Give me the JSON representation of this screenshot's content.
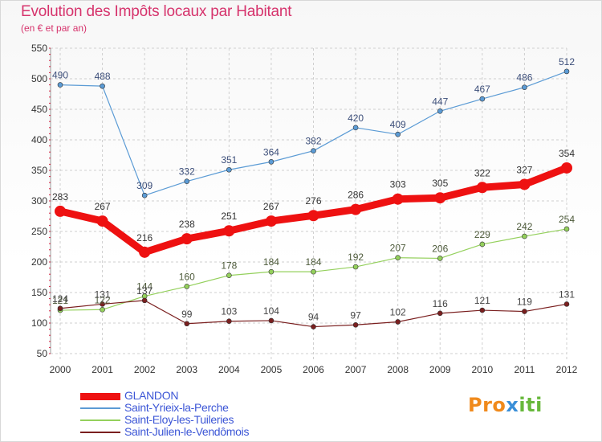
{
  "title": "Evolution des Impôts locaux par Habitant",
  "subtitle": "(en € et par an)",
  "logo": {
    "part1": "Pro",
    "part2": "x",
    "part3": "iti"
  },
  "chart_data": {
    "type": "line",
    "x": [
      "2000",
      "2001",
      "2002",
      "2003",
      "2004",
      "2005",
      "2006",
      "2007",
      "2008",
      "2009",
      "2010",
      "2011",
      "2012"
    ],
    "ylim": [
      50,
      550
    ],
    "yticks": [
      50,
      100,
      150,
      200,
      250,
      300,
      350,
      400,
      450,
      500,
      550
    ],
    "grid": true,
    "legend_position": "bottom-left",
    "series": [
      {
        "name": "GLANDON",
        "color": "#ee1111",
        "width": 9,
        "marker": 7,
        "values": [
          283,
          267,
          216,
          238,
          251,
          267,
          276,
          286,
          303,
          305,
          322,
          327,
          354
        ]
      },
      {
        "name": "Saint-Yrieix-la-Perche",
        "color": "#5b9bd5",
        "width": 1.2,
        "marker": 3,
        "values": [
          490,
          488,
          309,
          332,
          351,
          364,
          382,
          420,
          409,
          447,
          467,
          486,
          512
        ]
      },
      {
        "name": "Saint-Eloy-les-Tuileries",
        "color": "#94d05c",
        "width": 1.2,
        "marker": 3,
        "values": [
          121,
          122,
          144,
          160,
          178,
          184,
          184,
          192,
          207,
          206,
          229,
          242,
          254
        ]
      },
      {
        "name": "Saint-Julien-le-Vendômois",
        "color": "#7a1f1f",
        "width": 1.2,
        "marker": 3,
        "values": [
          124,
          131,
          137,
          99,
          103,
          104,
          94,
          97,
          102,
          116,
          121,
          119,
          131
        ]
      }
    ]
  }
}
